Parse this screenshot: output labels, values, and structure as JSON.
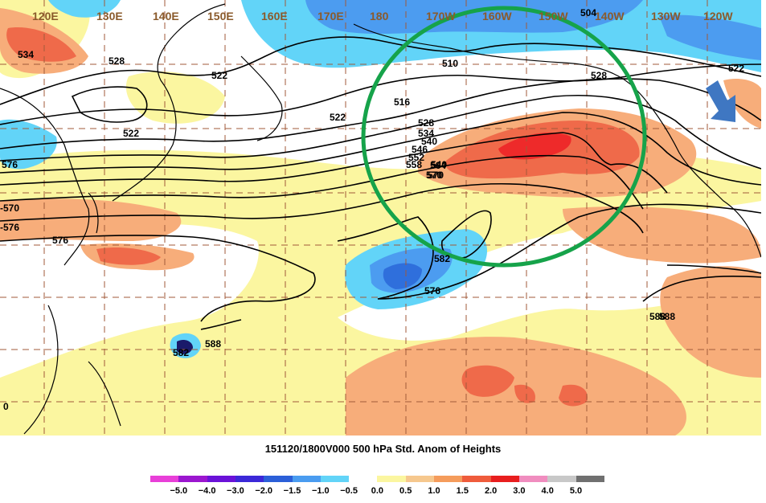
{
  "map": {
    "longitude_labels": [
      "120E",
      "130E",
      "140E",
      "150E",
      "160E",
      "170E",
      "180",
      "170W",
      "160W",
      "150W",
      "140W",
      "130W",
      "120W"
    ],
    "contour_labels": [
      "534",
      "528",
      "522",
      "522",
      "522",
      "516",
      "510",
      "504",
      "528",
      "522",
      "528",
      "534",
      "540",
      "546",
      "552",
      "558",
      "564",
      "570",
      "576",
      "540",
      "570",
      "576",
      "582",
      "576",
      "582",
      "588",
      "588",
      "588"
    ],
    "side_labels": [
      "-570",
      "-576",
      "0"
    ],
    "colors": {
      "neg_strong": "#2f6fdc",
      "neg_mid": "#4c9cf0",
      "neg_light": "#62d4f8",
      "pos_light": "#fbf6a0",
      "pos_mid": "#f7ad7a",
      "pos_strong": "#ef6a4a",
      "pos_max": "#ee2a2a",
      "circle": "#16a34a",
      "arrow": "#3f77c2"
    }
  },
  "caption": "151120/1800V000 500 hPa Std. Anom of Heights",
  "legend": {
    "colors": [
      "#e83fd8",
      "#9b16cf",
      "#6a12d8",
      "#3b28d8",
      "#2b5fd8",
      "#4a9cf0",
      "#62d4f8",
      "#ffffff",
      "#fbf6a0",
      "#f6c88e",
      "#f59c5c",
      "#ef5c3c",
      "#e81e1e",
      "#f08dbf",
      "#c8c8c8",
      "#707070"
    ],
    "labels": [
      "−5.0",
      "−4.0",
      "−3.0",
      "−2.0",
      "−1.5",
      "−1.0",
      "−0.5",
      "0.0",
      "0.5",
      "1.0",
      "1.5",
      "2.0",
      "3.0",
      "4.0",
      "5.0"
    ]
  }
}
